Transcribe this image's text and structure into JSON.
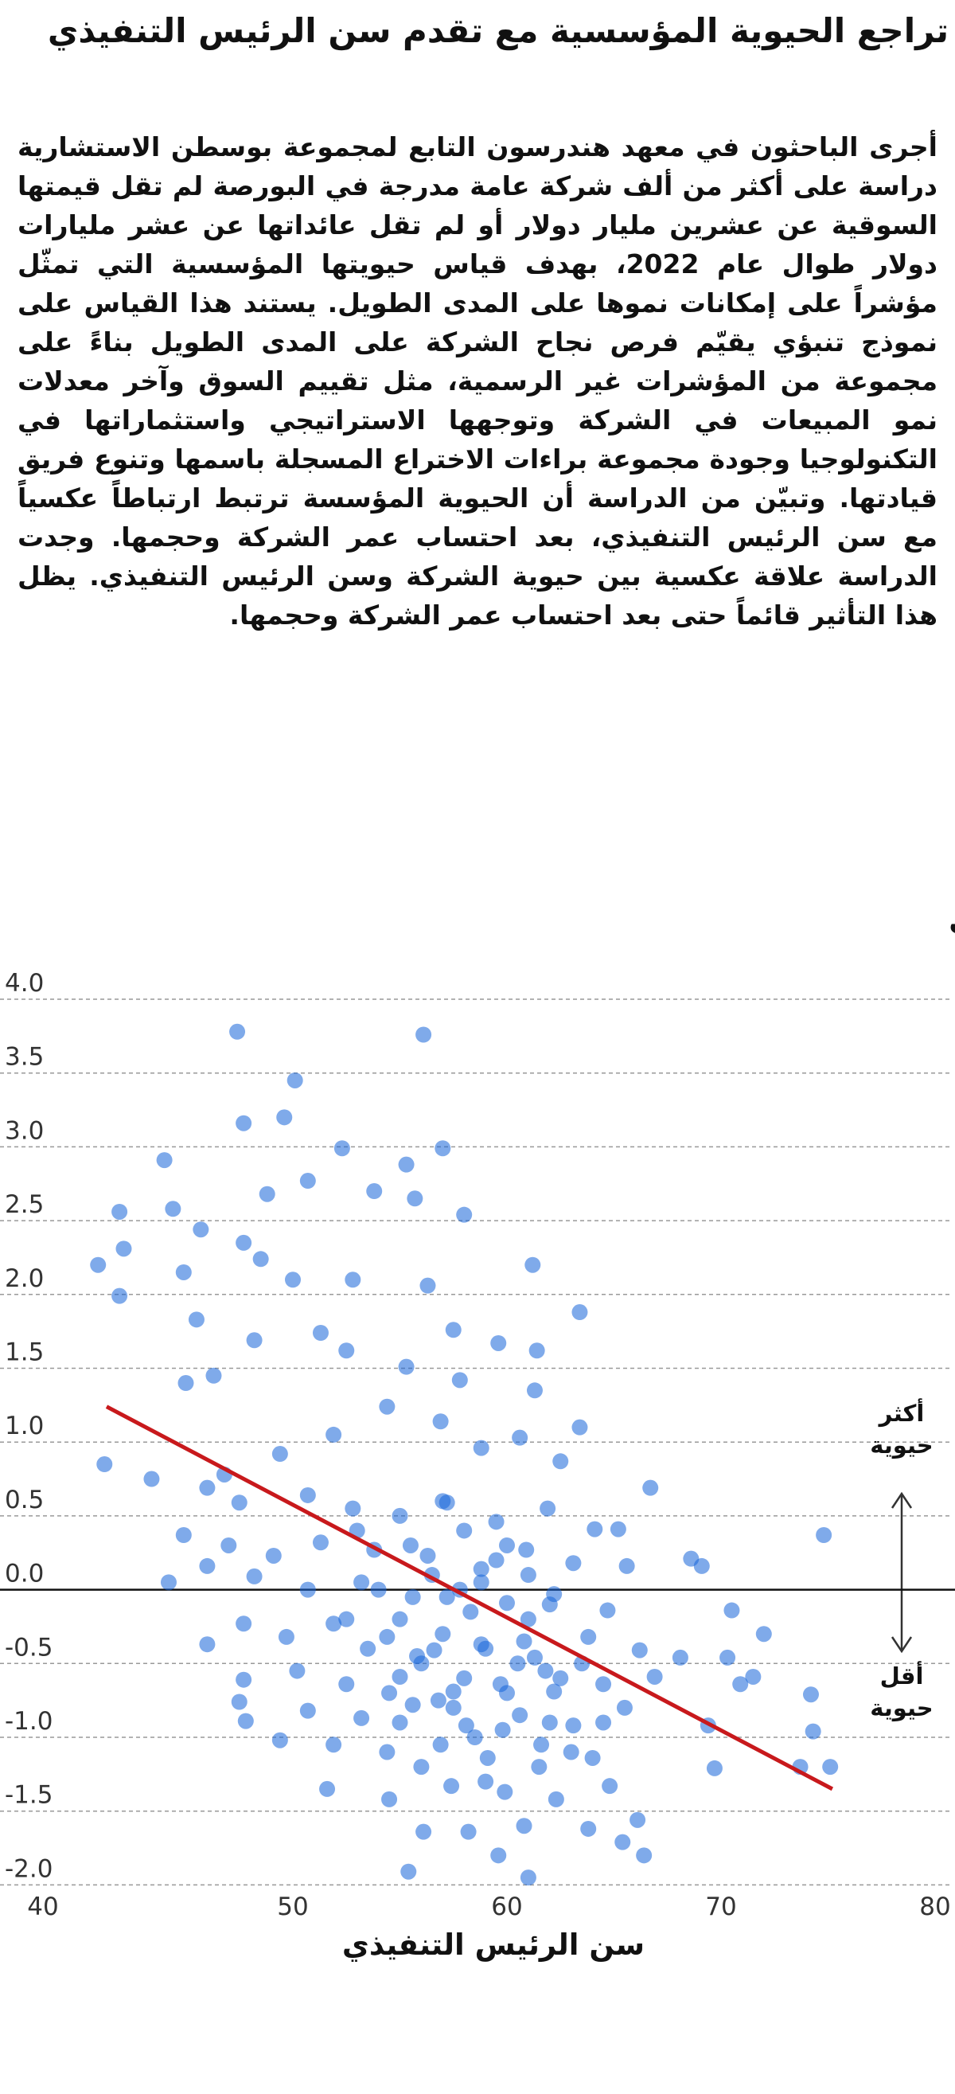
{
  "header": {
    "title": "تراجع الحيوية المؤسسية مع تقدم سن الرئيس التنفيذي"
  },
  "body": {
    "paragraph": "أجرى الباحثون في معهد هندرسون التابع لمجموعة بوسطن الاستشارية دراسة على أكثر من ألف شركة عامة مدرجة في البورصة لم تقل قيمتها السوقية عن عشرين مليار دولار أو لم تقل عائداتها عن عشر مليارات دولار طوال عام 2022، بهدف قياس حيويتها المؤسسية التي تمثّل مؤشراً على إمكانات نموها على المدى الطويل. يستند هذا القياس على نموذج تنبؤي يقيّم فرص نجاح الشركة على المدى الطويل بناءً على مجموعة من المؤشرات غير الرسمية، مثل تقييم السوق وآخر معدلات نمو المبيعات في الشركة وتوجهها الاستراتيجي واستثماراتها في التكنولوجيا وجودة مجموعة براءات الاختراع المسجلة باسمها وتنوع فريق قيادتها. وتبيّن من الدراسة أن الحيوية المؤسسة ترتبط ارتباطاً عكسياً مع سن الرئيس التنفيذي، بعد احتساب عمر الشركة وحجمها. وجدت الدراسة علاقة عكسية بين حيوية الشركة وسن الرئيس التنفيذي. يظل هذا التأثير قائماً حتى بعد احتساب عمر الشركة وحجمها."
  },
  "chart_data": {
    "type": "scatter",
    "title": "درجة الحيوية المؤسسية بحسب سن الرئيس التنفيذي",
    "x_label": "سن الرئيس التنفيذي",
    "annotations": [
      "أكثر حيوية",
      "أقل حيوية"
    ],
    "color": "#1565d8",
    "xlim": [
      40,
      80
    ],
    "xticks": [
      40,
      50,
      60,
      70,
      80
    ],
    "ylim": [
      -2.1,
      4.0
    ],
    "yticks": [
      {
        "value": 4,
        "label": "4.0"
      },
      3.5,
      {
        "value": 3,
        "label": "3.0"
      },
      2.5,
      {
        "value": 2,
        "label": "2.0"
      },
      1.5,
      {
        "value": 1,
        "label": "1.0"
      },
      0.5,
      {
        "value": 0,
        "label": "0.0"
      },
      -0.5,
      {
        "value": -1,
        "label": "-1.0"
      },
      -1.5,
      {
        "value": -2,
        "label": "-2.0"
      }
    ],
    "x": [
      47.4,
      56.1,
      50.1,
      47.7,
      49.6,
      44.0,
      52.3,
      57.0,
      55.3,
      44.4,
      41.9,
      48.8,
      50.7,
      53.8,
      55.7,
      58.0,
      45.7,
      42.1,
      44.9,
      40.9,
      41.9,
      47.7,
      48.5,
      50.0,
      52.8,
      56.3,
      61.2,
      63.4,
      45.5,
      48.2,
      51.3,
      52.5,
      57.5,
      59.6,
      61.4,
      45.0,
      46.3,
      55.3,
      57.8,
      61.3,
      63.4,
      41.2,
      43.4,
      46.8,
      49.4,
      51.9,
      54.4,
      56.9,
      58.8,
      60.6,
      62.5,
      66.7,
      46.0,
      47.5,
      50.7,
      52.8,
      55.0,
      57.2,
      59.5,
      61.9,
      64.1,
      65.2,
      44.9,
      47.0,
      49.1,
      51.3,
      53.8,
      56.3,
      58.8,
      60.9,
      63.1,
      65.6,
      68.6,
      74.8,
      44.2,
      46.0,
      48.2,
      50.7,
      53.2,
      55.6,
      57.8,
      60.0,
      62.2,
      64.7,
      69.1,
      70.5,
      46.0,
      47.7,
      49.7,
      51.9,
      54.4,
      56.6,
      58.8,
      61.3,
      63.8,
      66.2,
      68.1,
      72.0,
      70.3,
      47.7,
      50.2,
      52.5,
      55.0,
      57.5,
      59.7,
      62.2,
      64.5,
      66.9,
      70.9,
      71.5,
      47.5,
      50.7,
      53.2,
      55.6,
      58.1,
      60.6,
      63.1,
      65.5,
      47.8,
      49.4,
      51.9,
      54.4,
      56.9,
      59.1,
      61.6,
      64.0,
      69.4,
      74.2,
      74.3,
      51.6,
      54.5,
      57.4,
      59.9,
      62.3,
      64.8,
      69.7,
      73.7,
      75.1,
      56.1,
      58.2,
      60.8,
      63.8,
      66.1,
      55.4,
      59.6,
      61.0,
      65.4,
      66.4,
      55,
      56,
      57,
      58,
      59,
      60,
      61,
      62,
      56.5,
      57.5,
      58.5,
      59.5,
      60.5,
      61.5,
      62.5,
      54.5,
      55.5,
      53.5,
      63.5,
      64.5,
      54,
      57,
      58,
      60,
      59,
      56,
      55,
      61,
      62,
      63,
      52.5,
      53,
      58.3,
      59.8,
      60.8,
      57.2,
      56.8,
      61.8,
      55.8,
      58.8
    ],
    "y": [
      3.78,
      3.76,
      3.45,
      3.16,
      3.2,
      2.91,
      2.99,
      2.99,
      2.88,
      2.58,
      2.56,
      2.68,
      2.77,
      2.7,
      2.65,
      2.54,
      2.44,
      2.31,
      2.15,
      2.2,
      1.99,
      2.35,
      2.24,
      2.1,
      2.1,
      2.06,
      2.2,
      1.88,
      1.83,
      1.69,
      1.74,
      1.62,
      1.76,
      1.67,
      1.62,
      1.4,
      1.45,
      1.51,
      1.42,
      1.35,
      1.1,
      0.85,
      0.75,
      0.78,
      0.92,
      1.05,
      1.24,
      1.14,
      0.96,
      1.03,
      0.87,
      0.69,
      0.69,
      0.59,
      0.64,
      0.55,
      0.5,
      0.59,
      0.46,
      0.55,
      0.41,
      0.41,
      0.37,
      0.3,
      0.23,
      0.32,
      0.27,
      0.23,
      0.14,
      0.27,
      0.18,
      0.16,
      0.21,
      0.37,
      0.05,
      0.16,
      0.09,
      0.0,
      0.05,
      -0.05,
      0.0,
      -0.09,
      -0.03,
      -0.14,
      0.16,
      -0.14,
      -0.37,
      -0.23,
      -0.32,
      -0.23,
      -0.32,
      -0.41,
      -0.37,
      -0.46,
      -0.32,
      -0.41,
      -0.46,
      -0.3,
      -0.46,
      -0.61,
      -0.55,
      -0.64,
      -0.59,
      -0.69,
      -0.64,
      -0.69,
      -0.64,
      -0.59,
      -0.64,
      -0.59,
      -0.76,
      -0.82,
      -0.87,
      -0.78,
      -0.92,
      -0.85,
      -0.92,
      -0.8,
      -0.89,
      -1.02,
      -1.05,
      -1.1,
      -1.05,
      -1.14,
      -1.05,
      -1.14,
      -0.92,
      -0.71,
      -0.96,
      -1.35,
      -1.42,
      -1.33,
      -1.37,
      -1.42,
      -1.33,
      -1.21,
      -1.2,
      -1.2,
      -1.64,
      -1.64,
      -1.6,
      -1.62,
      -1.56,
      -1.91,
      -1.8,
      -1.95,
      -1.71,
      -1.8,
      -0.2,
      -0.5,
      -0.3,
      -0.6,
      -0.4,
      -0.7,
      -0.2,
      -0.9,
      0.1,
      -0.8,
      -1.0,
      0.2,
      -0.5,
      -1.2,
      -0.6,
      -0.7,
      0.3,
      -0.4,
      -0.5,
      -0.9,
      0.0,
      0.6,
      0.4,
      0.3,
      -1.3,
      -1.2,
      -0.9,
      0.1,
      -0.1,
      -1.1,
      -0.2,
      0.4,
      -0.15,
      -0.95,
      -0.35,
      -0.05,
      -0.75,
      -0.55,
      -0.45,
      0.05
    ],
    "trend": {
      "x": [
        41.3,
        75.2
      ],
      "y": [
        1.24,
        -1.35
      ],
      "color": "#c8191c"
    },
    "grid": true
  }
}
